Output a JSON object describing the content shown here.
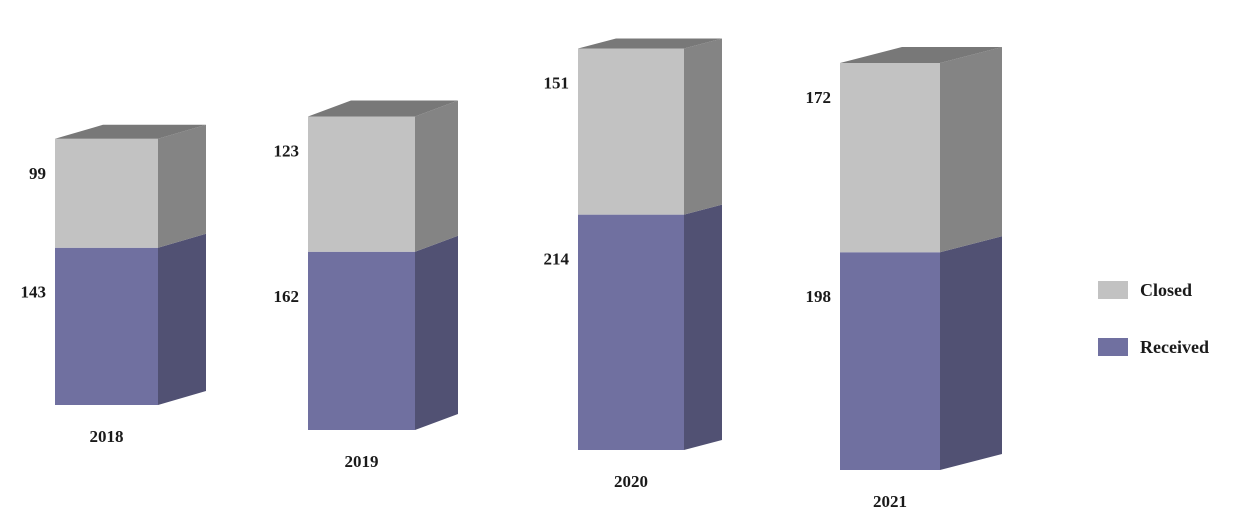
{
  "chart_data": {
    "type": "bar",
    "stacked": true,
    "categories": [
      "2018",
      "2019",
      "2020",
      "2021"
    ],
    "series": [
      {
        "name": "Received",
        "values": [
          143,
          162,
          214,
          198
        ],
        "color": "#7070a0"
      },
      {
        "name": "Closed",
        "values": [
          99,
          123,
          151,
          172
        ],
        "color": "#c2c2c2"
      }
    ],
    "legend_position": "right",
    "grid": false,
    "axes_visible": false
  }
}
